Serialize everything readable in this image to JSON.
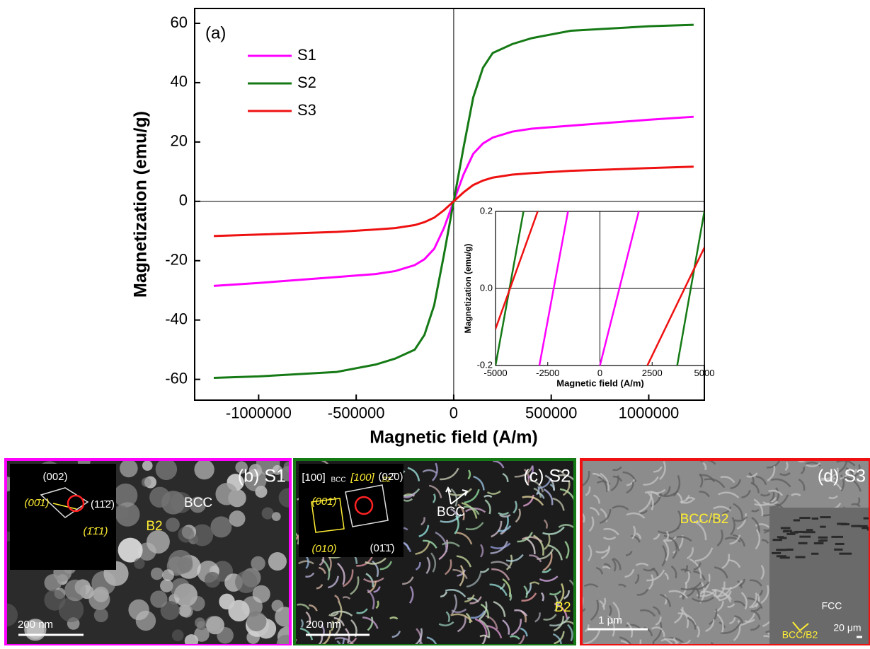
{
  "chart_data": [
    {
      "type": "line",
      "annotation": "(a)",
      "x_label": "Magnetic field (A/m)",
      "y_label": "Magnetization (emu/g)",
      "x": [
        -1230000,
        -1000000,
        -600000,
        -400000,
        -300000,
        -200000,
        -150000,
        -100000,
        -50000,
        0,
        50000,
        100000,
        150000,
        200000,
        300000,
        400000,
        600000,
        1000000,
        1230000
      ],
      "series": [
        {
          "name": "S1",
          "color": "#ff00ff",
          "values": [
            -28.5,
            -27.5,
            -25.5,
            -24.5,
            -23.5,
            -21.5,
            -19.5,
            -16,
            -9,
            0,
            9,
            16,
            19.5,
            21.5,
            23.5,
            24.5,
            25.5,
            27.5,
            28.5
          ]
        },
        {
          "name": "S2",
          "color": "#157a15",
          "values": [
            -59.5,
            -59,
            -57.5,
            -55,
            -53,
            -50,
            -45,
            -35,
            -18,
            0,
            18,
            35,
            45,
            50,
            53,
            55,
            57.5,
            59,
            59.5
          ]
        },
        {
          "name": "S3",
          "color": "#ee1111",
          "values": [
            -11.7,
            -11.2,
            -10.3,
            -9.5,
            -9,
            -8,
            -7,
            -5.5,
            -3,
            0,
            3,
            5.5,
            7,
            8,
            9,
            9.5,
            10.3,
            11.2,
            11.7
          ]
        }
      ],
      "xlim": [
        -1328000,
        1285000
      ],
      "ylim": [
        -67,
        65
      ],
      "xticks": [
        -1000000,
        -500000,
        0,
        500000,
        1000000
      ],
      "yticks": [
        -60,
        -40,
        -20,
        0,
        20,
        40,
        60
      ],
      "legend": "top-left"
    },
    {
      "type": "line",
      "x_label": "Magnetic field (A/m)",
      "y_label": "Magnetization (emu/g)",
      "series": [
        {
          "color": "#ff00ff",
          "x": [
            -2900,
            -1530,
            null,
            0,
            1860
          ],
          "values": [
            -0.2,
            0.2,
            null,
            -0.2,
            0.2
          ]
        },
        {
          "color": "#157a15",
          "x": [
            -5000,
            -3660,
            null,
            3700,
            5000
          ],
          "values": [
            -0.2,
            0.2,
            null,
            -0.2,
            0.2
          ]
        },
        {
          "color": "#ee1111",
          "x": [
            -5000,
            -2980,
            null,
            2270,
            5000
          ],
          "values": [
            -0.105,
            0.2,
            null,
            -0.2,
            0.106
          ]
        }
      ],
      "xlim": [
        -5000,
        5000
      ],
      "ylim": [
        -0.2,
        0.2
      ],
      "xticks": [
        -5000,
        -2500,
        0,
        2500,
        5000
      ],
      "yticks": [
        -0.2,
        {
          "value": 0,
          "label": "0.0"
        },
        0.2
      ]
    }
  ],
  "micrographs": [
    {
      "label": "(b) S1",
      "texts": [
        "(002)",
        "(00̄1)",
        "(11̄2̄)",
        "(1̄1̄1)",
        "BCC",
        "B2",
        "200 nm"
      ]
    },
    {
      "label": "(c) S2",
      "texts": [
        "[100]",
        "BCC",
        "[100]",
        "B2",
        "(001)",
        "(02̄0)",
        "(010)",
        "(01̄1̄)",
        "BCC",
        "B2",
        "200 nm"
      ]
    },
    {
      "label": "(d) S3",
      "texts": [
        "BCC/B2",
        "1 μm",
        "FCC",
        "BCC/B2",
        "20 μm"
      ]
    }
  ]
}
